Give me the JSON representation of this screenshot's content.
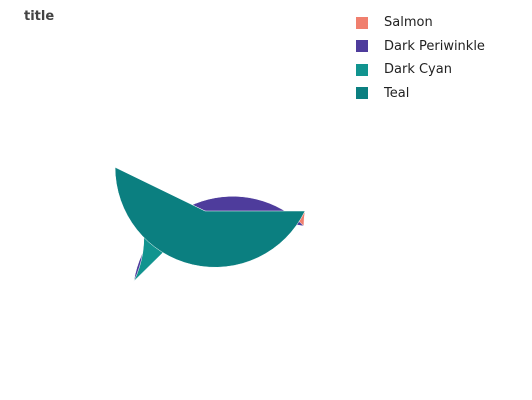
{
  "chart_data": {
    "type": "pie",
    "title": "title",
    "labels": [
      "Salmon",
      "Dark Periwinkle",
      "Dark Cyan",
      "Teal"
    ],
    "values": [
      2.4,
      35.2,
      19.6,
      42.8
    ],
    "unit": "%",
    "colors": [
      "#f07f6e",
      "#4e3c9c",
      "#11948f",
      "#0b7f80"
    ],
    "start_angle_deg": 0,
    "direction": "counterclockwise",
    "legend_position": "top-right"
  }
}
